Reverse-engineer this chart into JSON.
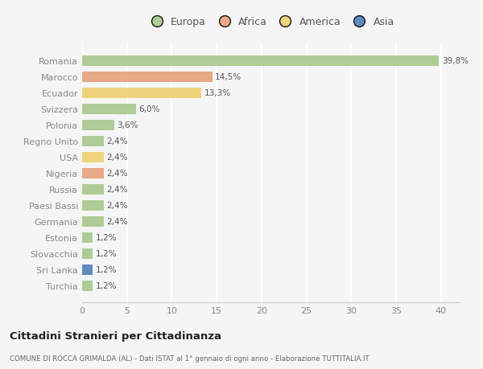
{
  "categories": [
    "Romania",
    "Marocco",
    "Ecuador",
    "Svizzera",
    "Polonia",
    "Regno Unito",
    "USA",
    "Nigeria",
    "Russia",
    "Paesi Bassi",
    "Germania",
    "Estonia",
    "Slovacchia",
    "Sri Lanka",
    "Turchia"
  ],
  "values": [
    39.8,
    14.5,
    13.3,
    6.0,
    3.6,
    2.4,
    2.4,
    2.4,
    2.4,
    2.4,
    2.4,
    1.2,
    1.2,
    1.2,
    1.2
  ],
  "labels": [
    "39,8%",
    "14,5%",
    "13,3%",
    "6,0%",
    "3,6%",
    "2,4%",
    "2,4%",
    "2,4%",
    "2,4%",
    "2,4%",
    "2,4%",
    "1,2%",
    "1,2%",
    "1,2%",
    "1,2%"
  ],
  "continents": [
    "Europa",
    "Africa",
    "America",
    "Europa",
    "Europa",
    "Europa",
    "America",
    "Africa",
    "Europa",
    "Europa",
    "Europa",
    "Europa",
    "Europa",
    "Asia",
    "Europa"
  ],
  "colors": {
    "Europa": "#a8c88a",
    "Africa": "#e8a07a",
    "America": "#f0d070",
    "Asia": "#5080b8"
  },
  "legend_order": [
    "Europa",
    "Africa",
    "America",
    "Asia"
  ],
  "legend_colors": [
    "#a8c88a",
    "#e8a07a",
    "#f0d070",
    "#5080b8"
  ],
  "title": "Cittadini Stranieri per Cittadinanza",
  "subtitle": "COMUNE DI ROCCA GRIMALDA (AL) - Dati ISTAT al 1° gennaio di ogni anno - Elaborazione TUTTITALIA.IT",
  "xlim": [
    0,
    42
  ],
  "xticks": [
    0,
    5,
    10,
    15,
    20,
    25,
    30,
    35,
    40
  ],
  "bg_color": "#f5f5f5",
  "grid_color": "#ffffff",
  "bar_height": 0.65
}
